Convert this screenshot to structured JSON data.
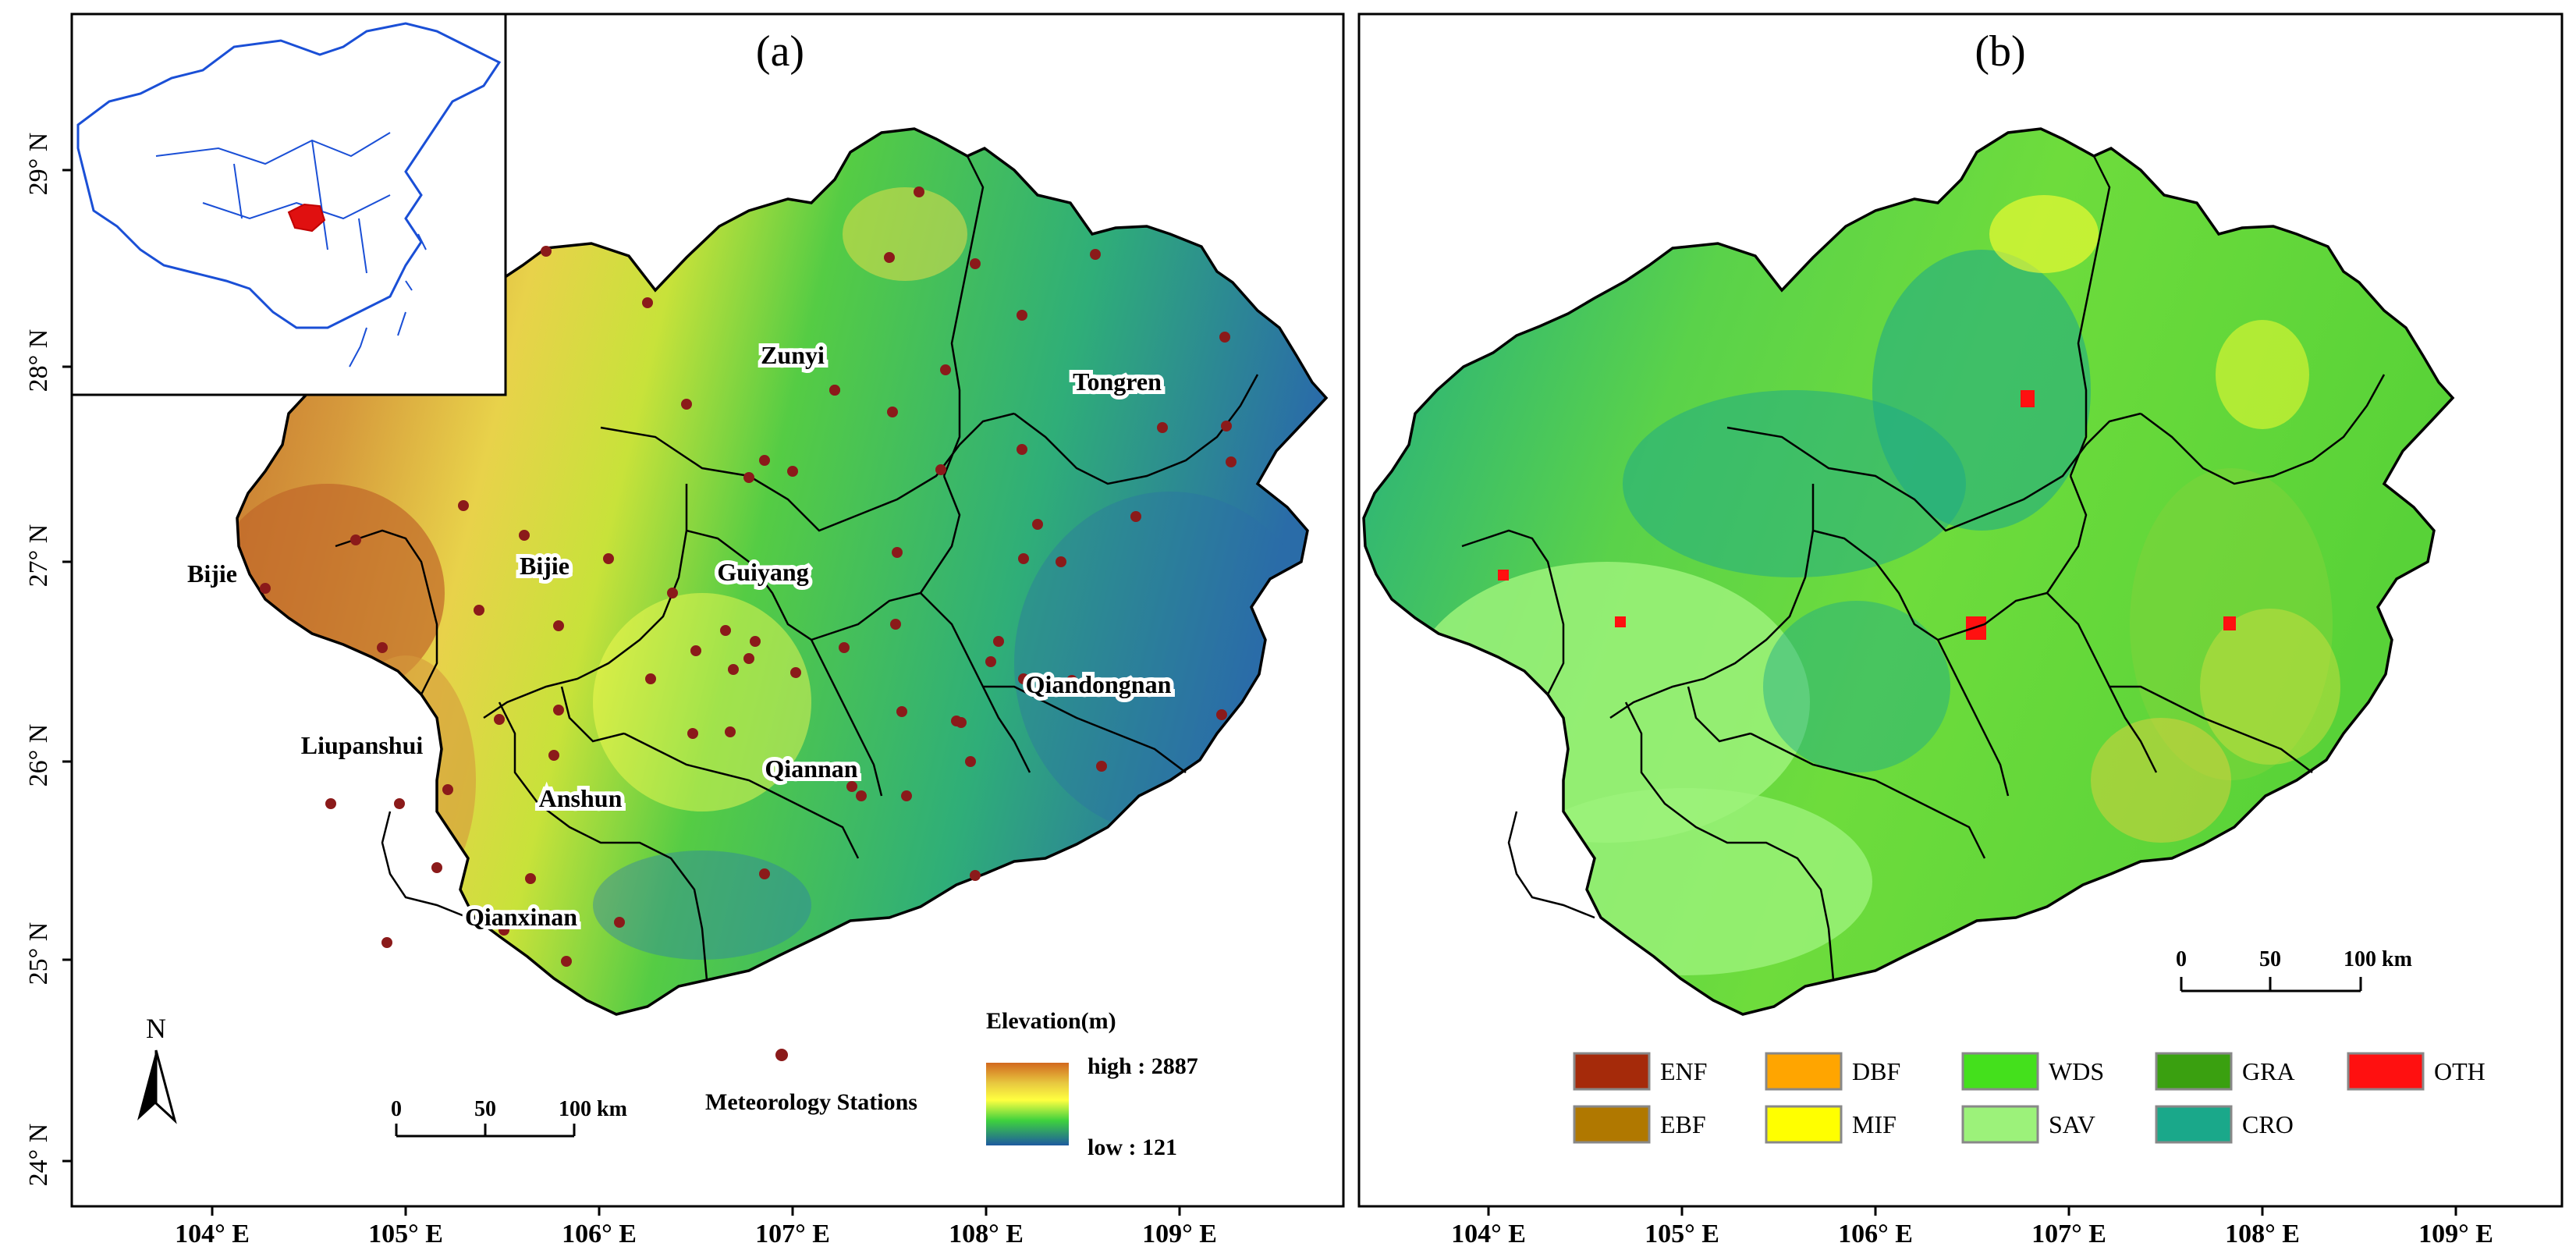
{
  "colors": {
    "elev_high": "#d2691e",
    "elev_mid_high": "#e8c940",
    "elev_mid": "#ffff40",
    "elev_mid_low": "#3ed13e",
    "elev_low": "#1e5aa0",
    "station": "#8b1a1a",
    "boundary": "#000000",
    "inset_border": "#1a4fd6",
    "inset_highlight": "#e01010"
  },
  "panel_a": {
    "label": "(a)",
    "lat_ticks": [
      "29° N",
      "28° N",
      "27° N",
      "26° N",
      "25° N",
      "24° N"
    ],
    "lon_ticks": [
      "104° E",
      "105° E",
      "106° E",
      "107° E",
      "108° E",
      "109° E"
    ],
    "cities": [
      {
        "name": "Zunyi"
      },
      {
        "name": "Tongren"
      },
      {
        "name": "Bijie"
      },
      {
        "name": "Bijie"
      },
      {
        "name": "Guiyang"
      },
      {
        "name": "Qiandongnan"
      },
      {
        "name": "Liupanshui"
      },
      {
        "name": "Anshun"
      },
      {
        "name": "Qiannan"
      },
      {
        "name": "Qianxinan"
      }
    ],
    "north_arrow": "N",
    "scalebar": {
      "ticks": [
        "0",
        "50",
        "100 km"
      ]
    },
    "legend_station": "Meteorology Stations",
    "legend_elevation": {
      "title": "Elevation(m)",
      "high": "high : 2887",
      "low": "low : 121"
    }
  },
  "panel_b": {
    "label": "(b)",
    "lon_ticks": [
      "104° E",
      "105° E",
      "106° E",
      "107° E",
      "108° E",
      "109° E"
    ],
    "scalebar": {
      "ticks": [
        "0",
        "50",
        "100 km"
      ]
    },
    "legend": [
      {
        "code": "ENF",
        "color": "#a52a0a"
      },
      {
        "code": "EBF",
        "color": "#b07800"
      },
      {
        "code": "DBF",
        "color": "#ffa500"
      },
      {
        "code": "MIF",
        "color": "#ffff00"
      },
      {
        "code": "WDS",
        "color": "#44e01c"
      },
      {
        "code": "SAV",
        "color": "#9cf27a"
      },
      {
        "code": "GRA",
        "color": "#3aa010"
      },
      {
        "code": "CRO",
        "color": "#1aa88a"
      },
      {
        "code": "OTH",
        "color": "#ff1010"
      }
    ]
  }
}
